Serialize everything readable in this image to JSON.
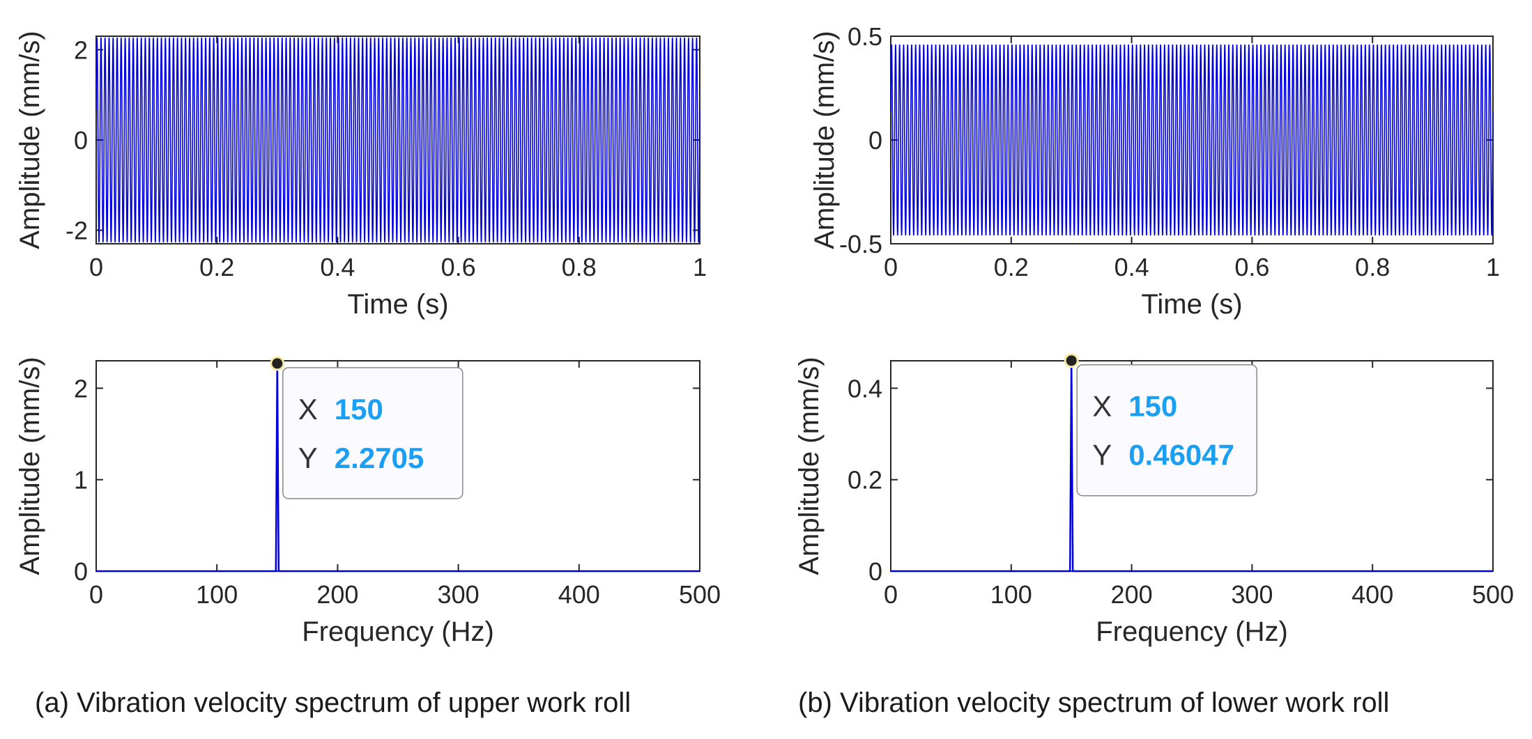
{
  "colors": {
    "signal": "#0000dd",
    "tip_value": "#1a9ff2",
    "axis": "#262626",
    "tip_bg": "#fafaff",
    "tip_border": "#888888"
  },
  "captions": {
    "a": "(a) Vibration velocity spectrum of upper work roll",
    "b": "(b) Vibration velocity spectrum of lower work roll"
  },
  "chart_data": [
    {
      "id": "a-time",
      "type": "line",
      "xlabel": "Time (s)",
      "ylabel": "Amplitude (mm/s)",
      "xlim": [
        0,
        1
      ],
      "ylim": [
        -2.3,
        2.3
      ],
      "xticks": [
        0,
        0.2,
        0.4,
        0.6,
        0.8,
        1
      ],
      "xtick_labels": [
        "0",
        "0.2",
        "0.4",
        "0.6",
        "0.8",
        "1"
      ],
      "yticks": [
        -2,
        0,
        2
      ],
      "ytick_labels": [
        "-2",
        "0",
        "2"
      ],
      "series": [
        {
          "name": "velocity",
          "frequency_hz": 150,
          "amplitude": 2.27
        }
      ]
    },
    {
      "id": "a-freq",
      "type": "line",
      "xlabel": "Frequency (Hz)",
      "ylabel": "Amplitude (mm/s)",
      "xlim": [
        0,
        500
      ],
      "ylim": [
        0,
        2.3
      ],
      "xticks": [
        0,
        100,
        200,
        300,
        400,
        500
      ],
      "xtick_labels": [
        "0",
        "100",
        "200",
        "300",
        "400",
        "500"
      ],
      "yticks": [
        0,
        1,
        2
      ],
      "ytick_labels": [
        "0",
        "1",
        "2"
      ],
      "series": [
        {
          "name": "spectrum",
          "peak_x": 150,
          "peak_y": 2.2705
        }
      ],
      "datatip": {
        "x_label": "X",
        "x_value": "150",
        "y_label": "Y",
        "y_value": "2.2705",
        "x": 150,
        "y": 2.2705
      }
    },
    {
      "id": "b-time",
      "type": "line",
      "xlabel": "Time (s)",
      "ylabel": "Amplitude (mm/s)",
      "xlim": [
        0,
        1
      ],
      "ylim": [
        -0.5,
        0.5
      ],
      "xticks": [
        0,
        0.2,
        0.4,
        0.6,
        0.8,
        1
      ],
      "xtick_labels": [
        "0",
        "0.2",
        "0.4",
        "0.6",
        "0.8",
        "1"
      ],
      "yticks": [
        -0.5,
        0,
        0.5
      ],
      "ytick_labels": [
        "-0.5",
        "0",
        "0.5"
      ],
      "series": [
        {
          "name": "velocity",
          "frequency_hz": 150,
          "amplitude": 0.46
        }
      ]
    },
    {
      "id": "b-freq",
      "type": "line",
      "xlabel": "Frequency (Hz)",
      "ylabel": "Amplitude (mm/s)",
      "xlim": [
        0,
        500
      ],
      "ylim": [
        0,
        0.46
      ],
      "xticks": [
        0,
        100,
        200,
        300,
        400,
        500
      ],
      "xtick_labels": [
        "0",
        "100",
        "200",
        "300",
        "400",
        "500"
      ],
      "yticks": [
        0,
        0.2,
        0.4
      ],
      "ytick_labels": [
        "0",
        "0.2",
        "0.4"
      ],
      "series": [
        {
          "name": "spectrum",
          "peak_x": 150,
          "peak_y": 0.46047
        }
      ],
      "datatip": {
        "x_label": "X",
        "x_value": "150",
        "y_label": "Y",
        "y_value": "0.46047",
        "x": 150,
        "y": 0.46047
      }
    }
  ]
}
